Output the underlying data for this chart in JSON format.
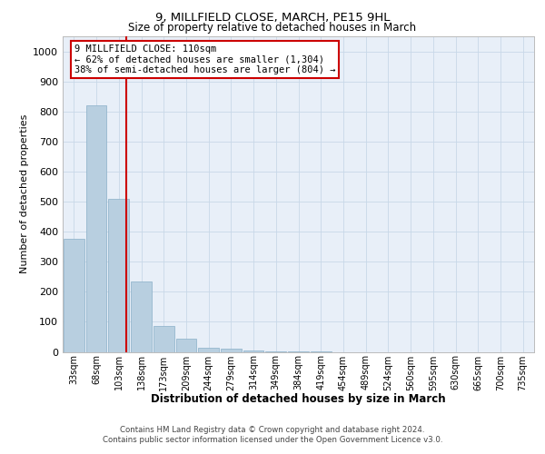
{
  "title1": "9, MILLFIELD CLOSE, MARCH, PE15 9HL",
  "title2": "Size of property relative to detached houses in March",
  "xlabel": "Distribution of detached houses by size in March",
  "ylabel": "Number of detached properties",
  "bar_labels": [
    "33sqm",
    "68sqm",
    "103sqm",
    "138sqm",
    "173sqm",
    "209sqm",
    "244sqm",
    "279sqm",
    "314sqm",
    "349sqm",
    "384sqm",
    "419sqm",
    "454sqm",
    "489sqm",
    "524sqm",
    "560sqm",
    "595sqm",
    "630sqm",
    "665sqm",
    "700sqm",
    "735sqm"
  ],
  "bar_values": [
    375,
    820,
    510,
    235,
    85,
    45,
    15,
    10,
    5,
    3,
    2,
    1,
    0,
    0,
    0,
    0,
    0,
    0,
    0,
    0,
    0
  ],
  "bar_color": "#b8cfe0",
  "bar_edge_color": "#8aafc8",
  "grid_color": "#c8d8e8",
  "background_color": "#e8eff8",
  "vline_x": 2.33,
  "annotation_line1": "9 MILLFIELD CLOSE: 110sqm",
  "annotation_line2": "← 62% of detached houses are smaller (1,304)",
  "annotation_line3": "38% of semi-detached houses are larger (804) →",
  "annotation_box_color": "#ffffff",
  "annotation_border_color": "#cc0000",
  "ylim": [
    0,
    1050
  ],
  "yticks": [
    0,
    100,
    200,
    300,
    400,
    500,
    600,
    700,
    800,
    900,
    1000
  ],
  "footer1": "Contains HM Land Registry data © Crown copyright and database right 2024.",
  "footer2": "Contains public sector information licensed under the Open Government Licence v3.0."
}
